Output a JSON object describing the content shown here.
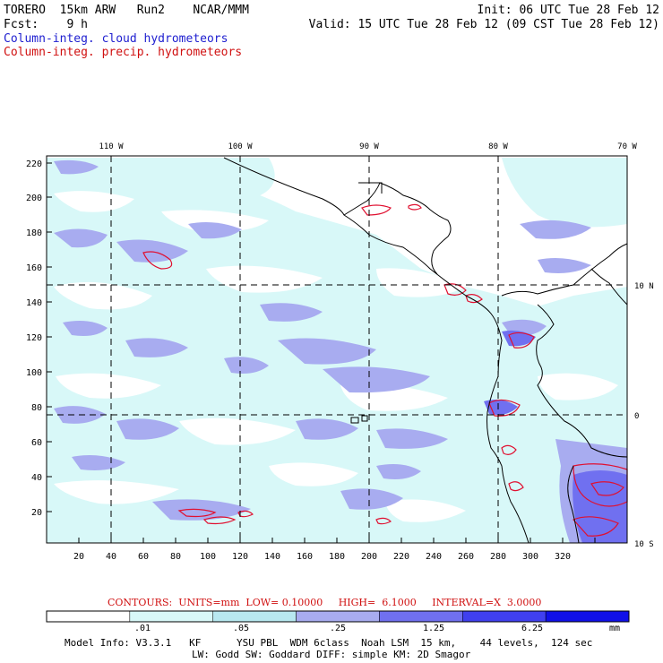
{
  "header": {
    "line1_left": "TORERO  15km ARW   Run2    NCAR/MMM",
    "line1_right": "Init: 06 UTC Tue 28 Feb 12",
    "line2_left": "Fcst:    9 h",
    "line2_right": "Valid: 15 UTC Tue 28 Feb 12 (09 CST Tue 28 Feb 12)",
    "field1": "Column-integ. cloud hydrometeors",
    "field2": "Column-integ. precip. hydrometeors"
  },
  "map": {
    "top_lon_labels": [
      "110 W",
      "100 W",
      "90 W",
      "80 W",
      "70 W"
    ],
    "right_lat_labels": [
      "10 N",
      "0",
      "10 S"
    ],
    "y_grid_labels": [
      "220",
      "200",
      "180",
      "160",
      "140",
      "120",
      "100",
      "80",
      "60",
      "40",
      "20"
    ],
    "x_grid_labels": [
      "20",
      "40",
      "60",
      "80",
      "100",
      "120",
      "140",
      "160",
      "180",
      "200",
      "220",
      "240",
      "260",
      "280",
      "300",
      "320"
    ]
  },
  "contours": {
    "text": "CONTOURS:  UNITS=mm  LOW= 0.10000     HIGH=  6.1000     INTERVAL=X  3.0000"
  },
  "colorbar": {
    "labels": [
      ".01",
      ".05",
      ".25",
      "1.25",
      "6.25"
    ],
    "unit": "mm",
    "colors": [
      "#ffffff",
      "#d8f8f8",
      "#b8e8f0",
      "#a8acf0",
      "#7070f0",
      "#4040f0",
      "#1010e8"
    ]
  },
  "model_info": {
    "line1": "Model Info: V3.3.1   KF      YSU PBL  WDM 6class  Noah LSM  15 km,    44 levels,  124 sec",
    "line2": "LW: Godd SW: Goddard DIFF: simple KM: 2D Smagor"
  }
}
